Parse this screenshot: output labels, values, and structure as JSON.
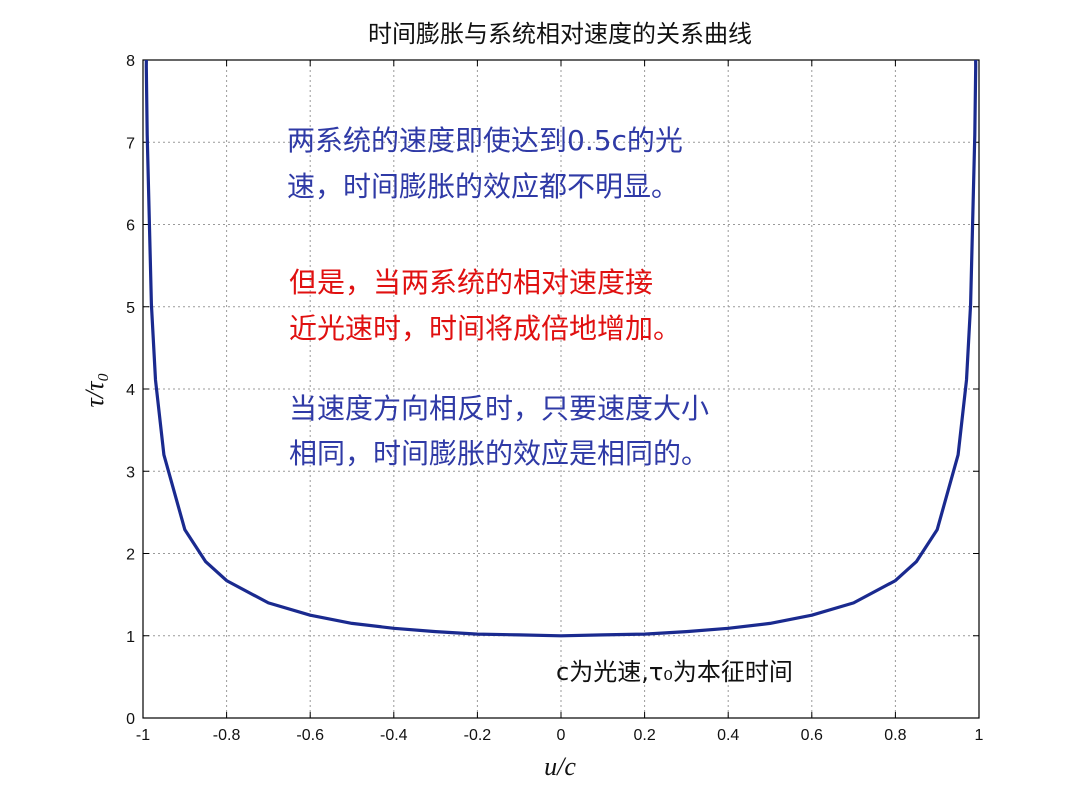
{
  "chart_data": {
    "type": "line",
    "title": "时间膨胀与系统相对速度的关系曲线",
    "xlabel": "u/c",
    "ylabel": "τ/τ₀",
    "xlim": [
      -1,
      1
    ],
    "ylim": [
      0,
      8
    ],
    "x_ticks": [
      "-1",
      "-0.8",
      "-0.6",
      "-0.4",
      "-0.2",
      "0",
      "0.2",
      "0.4",
      "0.6",
      "0.8",
      "1"
    ],
    "y_ticks": [
      "0",
      "1",
      "2",
      "3",
      "4",
      "5",
      "6",
      "7",
      "8"
    ],
    "grid": true,
    "line_color": "#1a2a8f",
    "series": [
      {
        "x": [
          -0.992,
          -0.99,
          -0.98,
          -0.97,
          -0.95,
          -0.9,
          -0.85,
          -0.8,
          -0.7,
          -0.6,
          -0.5,
          -0.4,
          -0.3,
          -0.2,
          -0.1,
          0,
          0.1,
          0.2,
          0.3,
          0.4,
          0.5,
          0.6,
          0.7,
          0.8,
          0.85,
          0.9,
          0.95,
          0.97,
          0.98,
          0.99,
          0.992
        ],
        "y": [
          7.92,
          7.09,
          5.03,
          4.11,
          3.2,
          2.29,
          1.9,
          1.67,
          1.4,
          1.25,
          1.15,
          1.09,
          1.05,
          1.02,
          1.01,
          1.0,
          1.01,
          1.02,
          1.05,
          1.09,
          1.15,
          1.25,
          1.4,
          1.67,
          1.9,
          2.29,
          3.2,
          4.11,
          5.03,
          7.09,
          7.92
        ]
      }
    ],
    "annotations": {
      "blue_1": [
        "两系统的速度即使达到0.5c的光",
        "速，时间膨胀的效应都不明显。"
      ],
      "red": [
        "但是，当两系统的相对速度接",
        "近光速时，时间将成倍地增加。"
      ],
      "blue_2": [
        "当速度方向相反时，只要速度大小",
        "相同，时间膨胀的效应是相同的。"
      ],
      "footnote": "c为光速,τ₀为本征时间"
    }
  }
}
